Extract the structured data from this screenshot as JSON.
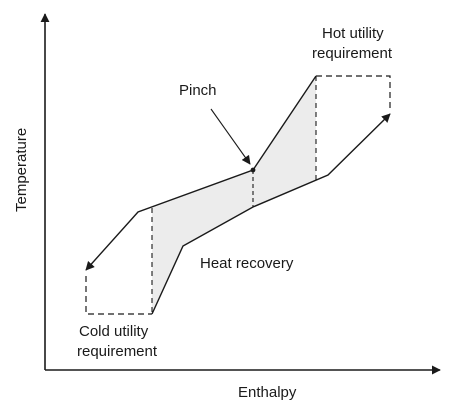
{
  "axes": {
    "x_label": "Enthalpy",
    "y_label": "Temperature"
  },
  "labels": {
    "hot_utility_line1": "Hot utility",
    "hot_utility_line2": "requirement",
    "pinch": "Pinch",
    "heat_recovery": "Heat recovery",
    "cold_utility_line1": "Cold utility",
    "cold_utility_line2": "requirement"
  },
  "colors": {
    "line": "#1a1a1a",
    "overlap_fill": "#ececec",
    "background": "#ffffff"
  }
}
